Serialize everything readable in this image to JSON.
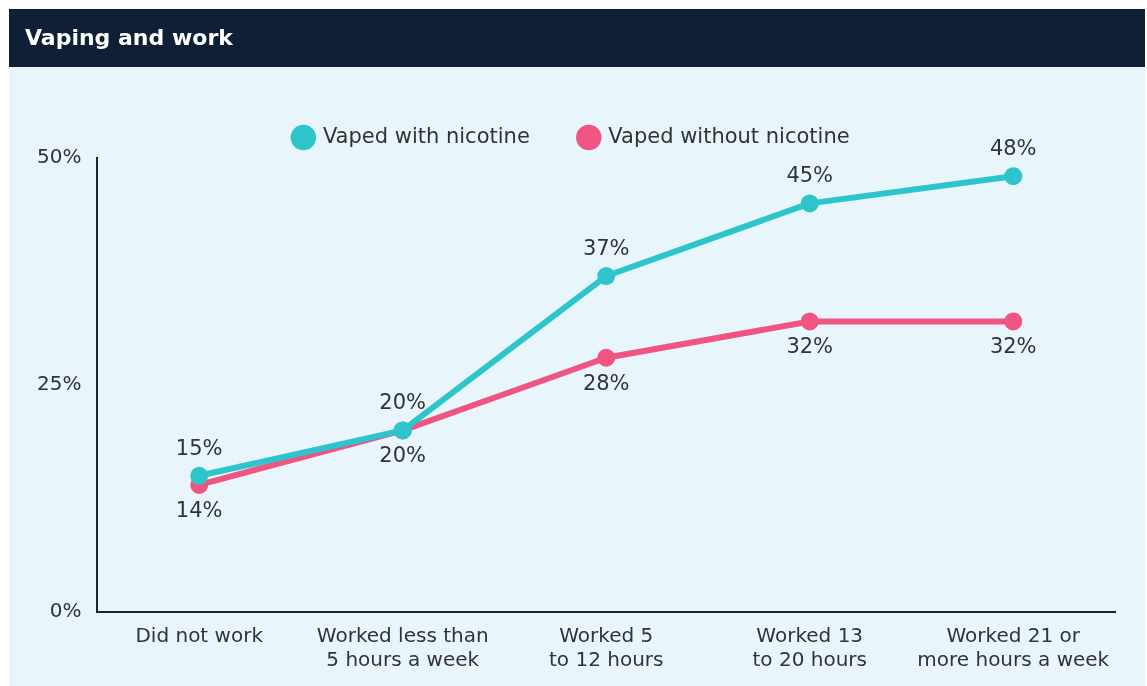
{
  "chart_data": {
    "type": "line",
    "title": "Vaping and work",
    "categories": [
      "Did not work",
      "Worked less than 5 hours a week",
      "Worked 5 to 12 hours",
      "Worked 13 to 20 hours",
      "Worked 21 or more hours a week"
    ],
    "series": [
      {
        "name": "Vaped with nicotine",
        "color": "#2ec4cc",
        "values": [
          15,
          20,
          37,
          45,
          48
        ],
        "value_labels": [
          "15%",
          "20%",
          "37%",
          "45%",
          "48%"
        ]
      },
      {
        "name": "Vaped without nicotine",
        "color": "#ef5580",
        "values": [
          14,
          20,
          28,
          32,
          32
        ],
        "value_labels": [
          "14%",
          "20%",
          "28%",
          "32%",
          "32%"
        ]
      }
    ],
    "ylim": [
      0,
      50
    ],
    "yticks": [
      {
        "value": 0,
        "label": "0%"
      },
      {
        "value": 25,
        "label": "25%"
      },
      {
        "value": 50,
        "label": "50%"
      }
    ],
    "grid": false,
    "legend": "top",
    "marker": "circle",
    "line_style": "solid"
  }
}
